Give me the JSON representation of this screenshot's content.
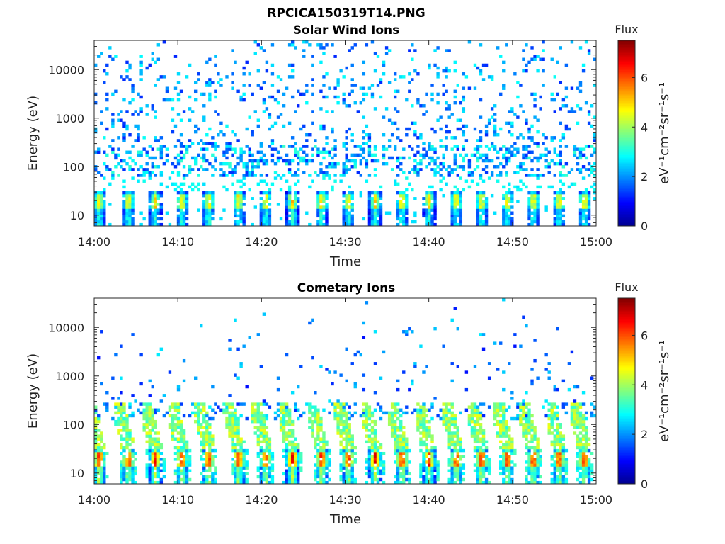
{
  "figure": {
    "title": "RPCICA150319T14.PNG"
  },
  "colors": {
    "colormap": [
      "#00008f",
      "#0000ff",
      "#0080ff",
      "#00ffff",
      "#80ff80",
      "#ffff00",
      "#ff8000",
      "#ff0000",
      "#800000"
    ]
  },
  "chart_data": [
    {
      "type": "heatmap",
      "title": "Solar Wind Ions",
      "xlabel": "Time",
      "ylabel": "Energy (eV)",
      "x_range": [
        "14:00",
        "15:00"
      ],
      "x_ticks": [
        "14:00",
        "14:10",
        "14:20",
        "14:30",
        "14:40",
        "14:50",
        "15:00"
      ],
      "y_scale": "log",
      "y_range": [
        6,
        40000
      ],
      "y_ticks": [
        10,
        100,
        1000,
        10000
      ],
      "y_tick_labels": [
        "10",
        "100",
        "1000",
        "10000"
      ],
      "colorbar": {
        "title": "Flux",
        "label": "eV⁻¹cm⁻²sr⁻¹s⁻¹",
        "range": [
          0,
          7.5
        ],
        "ticks": [
          0,
          2,
          4,
          6
        ],
        "tick_labels": [
          "0",
          "2",
          "4",
          "6"
        ]
      },
      "sweep_minutes": [
        0.6,
        4.1,
        7.3,
        10.5,
        13.7,
        17.3,
        20.5,
        23.7,
        27.2,
        30.4,
        33.6,
        36.8,
        40.0,
        43.3,
        46.3,
        49.4,
        52.5,
        55.6,
        58.6
      ],
      "low_energy_peak_flux": 5.0,
      "high_energy_background_flux": 1.2,
      "grid": false
    },
    {
      "type": "heatmap",
      "title": "Cometary Ions",
      "xlabel": "Time",
      "ylabel": "Energy (eV)",
      "x_range": [
        "14:00",
        "15:00"
      ],
      "x_ticks": [
        "14:00",
        "14:10",
        "14:20",
        "14:30",
        "14:40",
        "14:50",
        "15:00"
      ],
      "y_scale": "log",
      "y_range": [
        6,
        40000
      ],
      "y_ticks": [
        10,
        100,
        1000,
        10000
      ],
      "y_tick_labels": [
        "10",
        "100",
        "1000",
        "10000"
      ],
      "colorbar": {
        "title": "Flux",
        "label": "eV⁻¹cm⁻²sr⁻¹s⁻¹",
        "range": [
          0,
          7.5
        ],
        "ticks": [
          0,
          2,
          4,
          6
        ],
        "tick_labels": [
          "0",
          "2",
          "4",
          "6"
        ]
      },
      "sweep_minutes": [
        0.6,
        4.1,
        7.3,
        10.5,
        13.7,
        17.3,
        20.5,
        23.7,
        27.2,
        30.4,
        33.6,
        36.8,
        40.0,
        43.3,
        46.3,
        49.4,
        52.5,
        55.6,
        58.6
      ],
      "low_energy_peak_flux": 6.6,
      "high_energy_background_flux": 1.0,
      "grid": false
    }
  ]
}
